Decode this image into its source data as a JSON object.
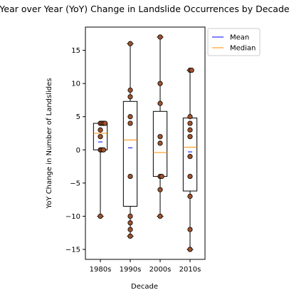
{
  "chart_data": {
    "type": "boxplot",
    "title": "Year over Year (YoY) Change in Landslide Occurrences by Decade",
    "xlabel": "Decade",
    "ylabel": "YoY Change in Number of Landslides",
    "categories": [
      "1980s",
      "1990s",
      "2000s",
      "2010s"
    ],
    "ylim": [
      -16.5,
      18.5
    ],
    "yticks": [
      -15,
      -10,
      -5,
      0,
      5,
      10,
      15
    ],
    "grid": false,
    "legend_position": "upper right, outside plot",
    "legend": [
      {
        "label": "Mean",
        "color": "#0000ff"
      },
      {
        "label": "Median",
        "color": "#ff8c00"
      }
    ],
    "colors": {
      "box": "#000000",
      "point_fill": "#a0522d",
      "point_edge": "#000000",
      "mean": "#0000ff",
      "median": "#ff8c00"
    },
    "boxes": [
      {
        "category": "1980s",
        "whisker_low": -10,
        "q1": 0,
        "median": 2.5,
        "q3": 4,
        "whisker_high": 4,
        "mean": 1.2,
        "points": [
          4,
          4,
          4,
          4,
          3,
          2,
          0,
          0,
          0,
          -10
        ]
      },
      {
        "category": "1990s",
        "whisker_low": -13,
        "q1": -8.5,
        "median": 1.5,
        "q3": 7.3,
        "whisker_high": 16,
        "mean": 0.3,
        "points": [
          16,
          9,
          8,
          5,
          4,
          -4,
          -10,
          -11,
          -12,
          -13
        ]
      },
      {
        "category": "2000s",
        "whisker_low": -10,
        "q1": -4,
        "median": -0.4,
        "q3": 5.8,
        "whisker_high": 17,
        "mean": 1.1,
        "points": [
          17,
          10,
          7,
          2,
          1,
          -4,
          -6,
          -4,
          -10
        ]
      },
      {
        "category": "2010s",
        "whisker_low": -15,
        "q1": -6.2,
        "median": 0.4,
        "q3": 4.8,
        "whisker_high": 12,
        "mean": -0.3,
        "points": [
          12,
          12,
          5,
          4,
          3,
          2,
          -1,
          -4,
          -7,
          -12,
          -15
        ]
      }
    ]
  }
}
